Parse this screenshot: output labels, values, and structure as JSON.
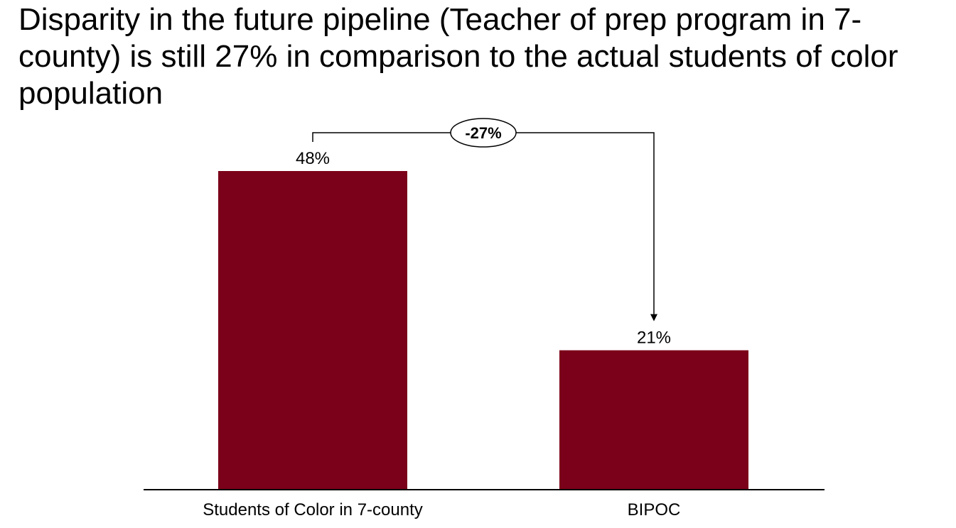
{
  "title": "Disparity in the future pipeline (Teacher of prep program in 7-county) is still 27% in comparison to the actual students of color population",
  "chart_data": {
    "type": "bar",
    "categories": [
      "Students of Color in 7-county",
      "BIPOC"
    ],
    "values": [
      48,
      21
    ],
    "value_labels": [
      "48%",
      "21%"
    ],
    "difference_label": "-27%",
    "bar_color": "#7b0019",
    "ylim": [
      0,
      48
    ],
    "grid": false,
    "legend": "none",
    "xlabel": "",
    "ylabel": ""
  }
}
